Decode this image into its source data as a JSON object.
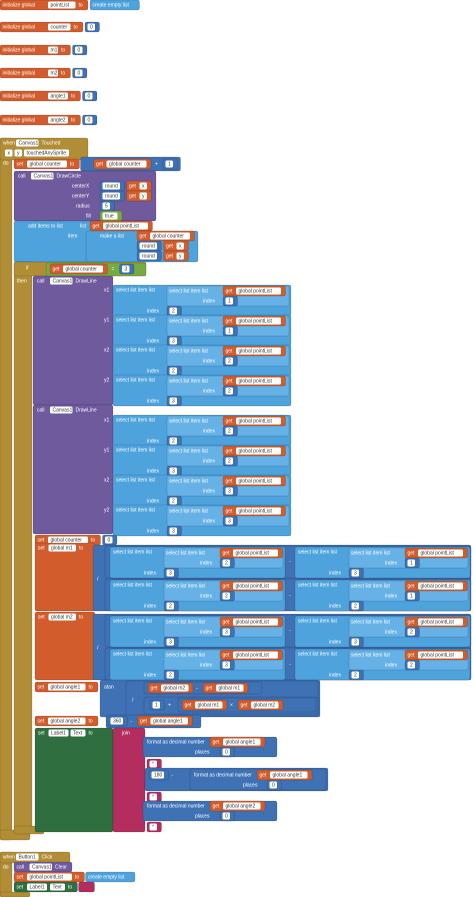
{
  "blocks": [
    "initialize global",
    "pointList",
    "to",
    "create empty list",
    "initialize global",
    "counter",
    "to",
    0,
    "initialize global",
    "m1",
    "to",
    0,
    "initialize global",
    "m2",
    "to",
    0,
    "initialize global",
    "angle1",
    "to",
    0,
    "initialize global",
    "angle2",
    "to",
    0,
    "when",
    "Canvas1",
    "Touched",
    "x",
    "y",
    "touchedAnySprite",
    "do",
    "set",
    "global counter",
    "to",
    "get",
    "global counter",
    "+",
    1,
    "call",
    "Canvas1",
    "DrawCircle",
    "centerX",
    "centerY",
    "radius",
    "fill",
    "round",
    "get",
    "x",
    "round",
    "get",
    "y",
    5,
    "true",
    "add items to list",
    "list",
    "get",
    "global pointList",
    "item",
    "make a list",
    "get",
    "global counter",
    "round",
    "get",
    "x",
    "round",
    "get",
    "y",
    "if",
    "get",
    "global counter",
    "=",
    3,
    "then",
    "call",
    "Canvas1",
    "DrawLine",
    "x1",
    "y1",
    "x2",
    "y2",
    "select list item list",
    "select list item list",
    "get",
    "global pointList",
    "index",
    1,
    "index",
    2,
    "select list item list",
    "select list item list",
    "get",
    "global pointList",
    "index",
    1,
    "index",
    3,
    "select list item list",
    "select list item list",
    "get",
    "global pointList",
    "index",
    2,
    "index",
    2,
    "select list item list",
    "select list item list",
    "get",
    "global pointList",
    "index",
    2,
    "index",
    3,
    "call",
    "Canvas1",
    "DrawLine",
    "x1",
    "y1",
    "x2",
    "y2",
    "select list item list",
    "select list item list",
    "get",
    "global pointList",
    "index",
    2,
    "index",
    2,
    "select list item list",
    "select list item list",
    "get",
    "global pointList",
    "index",
    2,
    "index",
    3,
    "select list item list",
    "select list item list",
    "get",
    "global pointList",
    "index",
    3,
    "index",
    2,
    "select list item list",
    "select list item list",
    "get",
    "global pointList",
    "index",
    3,
    "index",
    3,
    "set",
    "global counter",
    "to",
    0,
    "set",
    "global m1",
    "to",
    "/",
    "select list item list",
    "select list item list",
    "get",
    "global pointList",
    "index",
    2,
    "index",
    3,
    "-",
    "select list item list",
    "select list item list",
    "get",
    "global pointList",
    "index",
    1,
    "index",
    3,
    "select list item list",
    "select list item list",
    "get",
    "global pointList",
    "index",
    2,
    "index",
    2,
    "-",
    "select list item list",
    "select list item list",
    "get",
    "global pointList",
    "index",
    1,
    "index",
    2,
    "set",
    "global m2",
    "to",
    "/",
    "select list item list",
    "select list item list",
    "get",
    "global pointList",
    "index",
    3,
    "index",
    3,
    "-",
    "select list item list",
    "select list item list",
    "get",
    "global pointList",
    "index",
    2,
    "index",
    3,
    "select list item list",
    "select list item list",
    "get",
    "global pointList",
    "index",
    3,
    "index",
    2,
    "-",
    "select list item list",
    "select list item list",
    "get",
    "global pointList",
    "index",
    2,
    "index",
    2,
    "set",
    "global angle1",
    "to",
    "atan",
    "/",
    "get",
    "global m2",
    "-",
    "get",
    "global m1",
    1,
    "+",
    "get",
    "global m1",
    "×",
    "get",
    "global m2",
    "set",
    "global angle2",
    "to",
    360,
    "-",
    "get",
    "global angle1",
    "set",
    "Label1",
    "Text",
    "to",
    "join",
    "format as decimal number",
    "get",
    "global angle1",
    "places",
    0,
    "°",
    180,
    "-",
    "format as decimal number",
    "get",
    "global angle1",
    "places",
    0,
    "°",
    "format as decimal number",
    "get",
    "global angle2",
    "places",
    0,
    "°",
    "when",
    "Button1",
    "Click",
    "do",
    "call",
    "Canvas1",
    "Clear",
    "set",
    "global pointList",
    "to",
    "create empty list",
    "set",
    "Label1",
    "Text",
    "to"
  ]
}
